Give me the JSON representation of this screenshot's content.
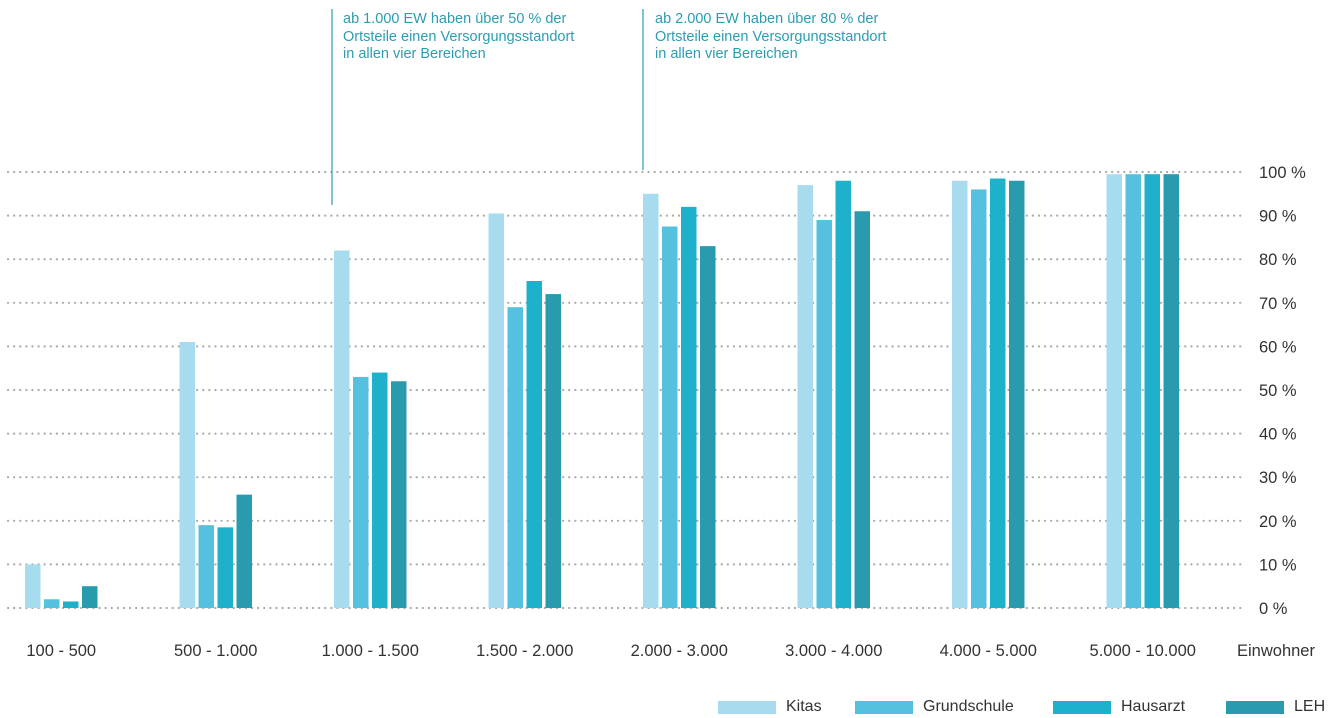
{
  "chart_data": {
    "type": "bar",
    "categories": [
      "100 - 500",
      "500 - 1.000",
      "1.000 - 1.500",
      "1.500 - 2.000",
      "2.000 - 3.000",
      "3.000 - 4.000",
      "4.000 - 5.000",
      "5.000 - 10.000"
    ],
    "xlabel": "Einwohner",
    "ylabel": "",
    "ylim": [
      0,
      100
    ],
    "yticks": [
      "0 %",
      "10 %",
      "20 %",
      "30 %",
      "40 %",
      "50 %",
      "60 %",
      "70 %",
      "80 %",
      "90 %",
      "100 %"
    ],
    "grid": "dotted horizontal",
    "legend_position": "bottom-right",
    "series": [
      {
        "name": "Kitas",
        "color": "#a6dcee",
        "values": [
          10,
          61,
          82,
          90.5,
          95,
          97,
          98,
          99.5
        ]
      },
      {
        "name": "Grundschule",
        "color": "#56c1df",
        "values": [
          2,
          19,
          53,
          69,
          87.5,
          89,
          96,
          99.5
        ]
      },
      {
        "name": "Hausarzt",
        "color": "#1fb0cb",
        "values": [
          1.5,
          18.5,
          54,
          75,
          92,
          98,
          98.5,
          99.5
        ]
      },
      {
        "name": "LEH",
        "color": "#2a9aaf",
        "values": [
          5,
          26,
          52,
          72,
          83,
          91,
          98,
          99.5
        ]
      }
    ],
    "annotations": [
      {
        "text": [
          "ab 1.000 EW haben über 50 % der",
          "Ortsteile einen Versorgungsstandort",
          "in allen vier Bereichen"
        ]
      },
      {
        "text": [
          "ab 2.000 EW haben über 80 % der",
          "Ortsteile einen Versorgungsstandort",
          "in allen vier Bereichen"
        ]
      }
    ]
  }
}
